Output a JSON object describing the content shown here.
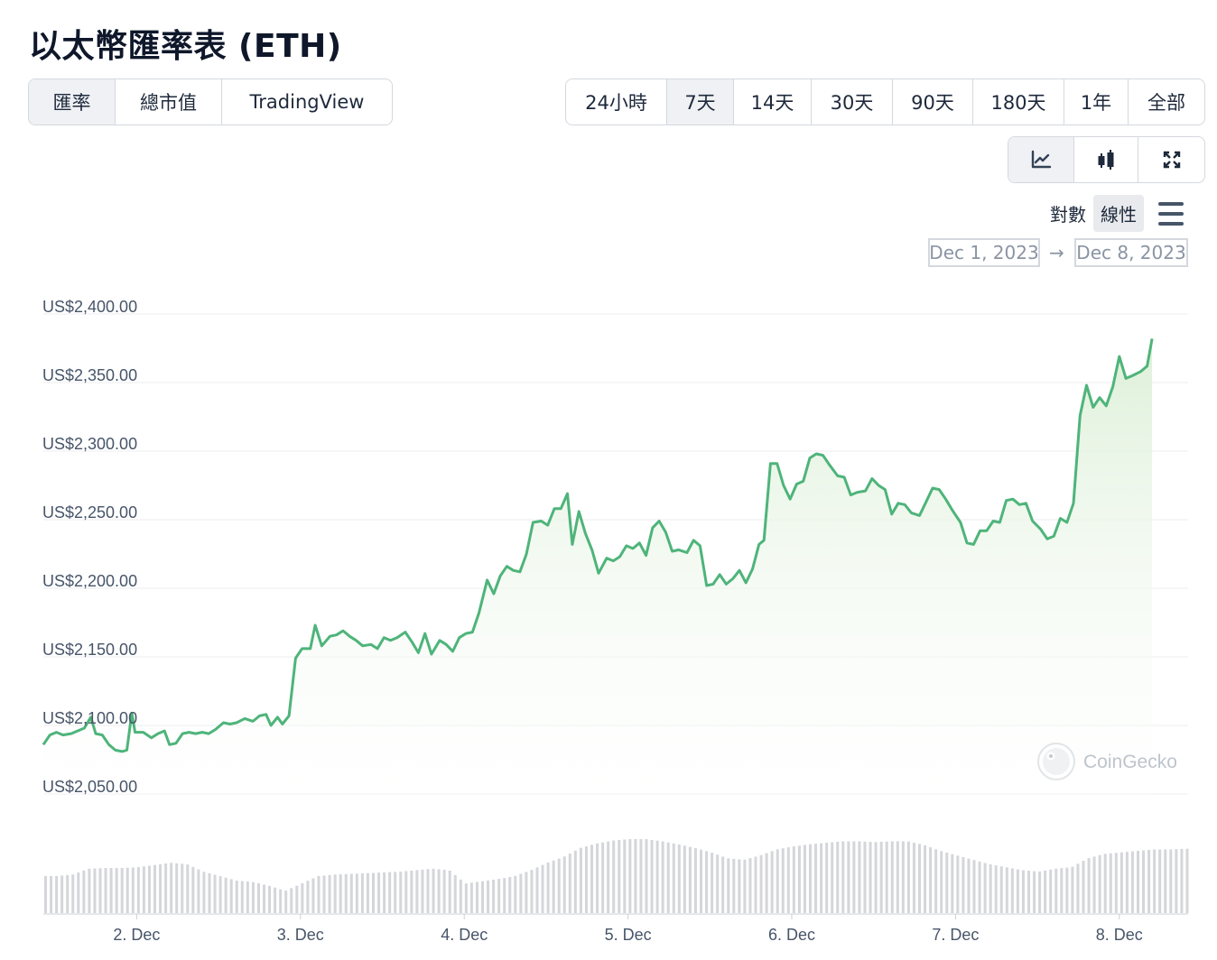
{
  "page": {
    "title": "以太幣匯率表 (ETH)"
  },
  "view_tabs": [
    {
      "label": "匯率",
      "active": true
    },
    {
      "label": "總市值",
      "active": false
    },
    {
      "label": "TradingView",
      "active": false
    }
  ],
  "range_tabs": [
    {
      "label": "24小時",
      "active": false
    },
    {
      "label": "7天",
      "active": true
    },
    {
      "label": "14天",
      "active": false
    },
    {
      "label": "30天",
      "active": false
    },
    {
      "label": "90天",
      "active": false
    },
    {
      "label": "180天",
      "active": false
    },
    {
      "label": "1年",
      "active": false
    },
    {
      "label": "全部",
      "active": false
    }
  ],
  "chart_type_tabs": [
    {
      "icon": "line-chart-icon",
      "active": true
    },
    {
      "icon": "candlestick-icon",
      "active": false
    },
    {
      "icon": "fullscreen-icon",
      "active": false
    }
  ],
  "scale_options": [
    {
      "label": "對數",
      "active": false
    },
    {
      "label": "線性",
      "active": true
    }
  ],
  "date_range": {
    "from": "Dec 1, 2023",
    "arrow": "→",
    "to": "Dec 8, 2023"
  },
  "watermark": "CoinGecko",
  "colors": {
    "line": "#4eb47a",
    "area_top": "#dcefd7",
    "volume": "#d4d6da",
    "grid": "#eceef1"
  },
  "chart_data": {
    "type": "area",
    "title": "",
    "xlabel": "",
    "ylabel": "",
    "ylim": [
      2050,
      2400
    ],
    "yticks": [
      2400,
      2350,
      2300,
      2250,
      2200,
      2150,
      2100,
      2050
    ],
    "ytick_labels": [
      "US$2,400.00",
      "US$2,350.00",
      "US$2,300.00",
      "US$2,250.00",
      "US$2,200.00",
      "US$2,150.00",
      "US$2,100.00",
      "US$2,050.00"
    ],
    "xlim": [
      1.43,
      8.42
    ],
    "xticks": [
      2,
      3,
      4,
      5,
      6,
      7,
      8
    ],
    "xtick_labels": [
      "2. Dec",
      "3. Dec",
      "4. Dec",
      "5. Dec",
      "6. Dec",
      "7. Dec",
      "8. Dec"
    ],
    "grid": true,
    "series": [
      {
        "values": [
          [
            1.43,
            2086
          ],
          [
            1.47,
            2093
          ],
          [
            1.51,
            2095
          ],
          [
            1.55,
            2093
          ],
          [
            1.6,
            2094
          ],
          [
            1.68,
            2098
          ],
          [
            1.72,
            2106
          ],
          [
            1.75,
            2094
          ],
          [
            1.79,
            2093
          ],
          [
            1.83,
            2086
          ],
          [
            1.87,
            2082
          ],
          [
            1.91,
            2081
          ],
          [
            1.94,
            2082
          ],
          [
            1.97,
            2109
          ],
          [
            1.99,
            2095
          ],
          [
            2.04,
            2095
          ],
          [
            2.09,
            2091
          ],
          [
            2.13,
            2094
          ],
          [
            2.17,
            2096
          ],
          [
            2.2,
            2086
          ],
          [
            2.24,
            2087
          ],
          [
            2.28,
            2094
          ],
          [
            2.32,
            2095
          ],
          [
            2.36,
            2094
          ],
          [
            2.4,
            2095
          ],
          [
            2.44,
            2094
          ],
          [
            2.48,
            2097
          ],
          [
            2.53,
            2102
          ],
          [
            2.57,
            2101
          ],
          [
            2.61,
            2102
          ],
          [
            2.66,
            2105
          ],
          [
            2.71,
            2103
          ],
          [
            2.75,
            2107
          ],
          [
            2.79,
            2108
          ],
          [
            2.82,
            2100
          ],
          [
            2.86,
            2106
          ],
          [
            2.89,
            2101
          ],
          [
            2.93,
            2107
          ],
          [
            2.97,
            2149
          ],
          [
            3.01,
            2156
          ],
          [
            3.06,
            2156
          ],
          [
            3.09,
            2173
          ],
          [
            3.13,
            2158
          ],
          [
            3.18,
            2165
          ],
          [
            3.22,
            2166
          ],
          [
            3.26,
            2169
          ],
          [
            3.3,
            2165
          ],
          [
            3.34,
            2162
          ],
          [
            3.38,
            2158
          ],
          [
            3.43,
            2159
          ],
          [
            3.47,
            2156
          ],
          [
            3.51,
            2164
          ],
          [
            3.55,
            2162
          ],
          [
            3.59,
            2164
          ],
          [
            3.64,
            2168
          ],
          [
            3.68,
            2161
          ],
          [
            3.72,
            2153
          ],
          [
            3.76,
            2167
          ],
          [
            3.8,
            2152
          ],
          [
            3.85,
            2162
          ],
          [
            3.89,
            2159
          ],
          [
            3.93,
            2154
          ],
          [
            3.97,
            2164
          ],
          [
            4.01,
            2167
          ],
          [
            4.05,
            2168
          ],
          [
            4.09,
            2182
          ],
          [
            4.14,
            2206
          ],
          [
            4.18,
            2196
          ],
          [
            4.22,
            2209
          ],
          [
            4.26,
            2216
          ],
          [
            4.3,
            2213
          ],
          [
            4.34,
            2212
          ],
          [
            4.38,
            2225
          ],
          [
            4.42,
            2248
          ],
          [
            4.47,
            2249
          ],
          [
            4.51,
            2246
          ],
          [
            4.55,
            2258
          ],
          [
            4.59,
            2258
          ],
          [
            4.63,
            2269
          ],
          [
            4.66,
            2232
          ],
          [
            4.7,
            2256
          ],
          [
            4.74,
            2240
          ],
          [
            4.78,
            2228
          ],
          [
            4.82,
            2211
          ],
          [
            4.87,
            2222
          ],
          [
            4.91,
            2220
          ],
          [
            4.95,
            2223
          ],
          [
            4.99,
            2231
          ],
          [
            5.03,
            2229
          ],
          [
            5.07,
            2233
          ],
          [
            5.11,
            2224
          ],
          [
            5.15,
            2244
          ],
          [
            5.19,
            2249
          ],
          [
            5.23,
            2241
          ],
          [
            5.27,
            2227
          ],
          [
            5.31,
            2228
          ],
          [
            5.36,
            2226
          ],
          [
            5.4,
            2235
          ],
          [
            5.44,
            2231
          ],
          [
            5.48,
            2202
          ],
          [
            5.52,
            2203
          ],
          [
            5.56,
            2210
          ],
          [
            5.6,
            2203
          ],
          [
            5.64,
            2207
          ],
          [
            5.68,
            2213
          ],
          [
            5.72,
            2204
          ],
          [
            5.76,
            2214
          ],
          [
            5.8,
            2232
          ],
          [
            5.83,
            2235
          ],
          [
            5.87,
            2291
          ],
          [
            5.91,
            2291
          ],
          [
            5.95,
            2275
          ],
          [
            5.99,
            2265
          ],
          [
            6.03,
            2276
          ],
          [
            6.07,
            2278
          ],
          [
            6.11,
            2295
          ],
          [
            6.15,
            2298
          ],
          [
            6.19,
            2297
          ],
          [
            6.23,
            2290
          ],
          [
            6.28,
            2282
          ],
          [
            6.32,
            2281
          ],
          [
            6.36,
            2268
          ],
          [
            6.4,
            2270
          ],
          [
            6.45,
            2271
          ],
          [
            6.49,
            2280
          ],
          [
            6.53,
            2275
          ],
          [
            6.57,
            2272
          ],
          [
            6.61,
            2254
          ],
          [
            6.65,
            2262
          ],
          [
            6.69,
            2261
          ],
          [
            6.73,
            2255
          ],
          [
            6.78,
            2253
          ],
          [
            6.82,
            2263
          ],
          [
            6.86,
            2273
          ],
          [
            6.9,
            2272
          ],
          [
            6.94,
            2265
          ],
          [
            6.98,
            2257
          ],
          [
            7.03,
            2248
          ],
          [
            7.07,
            2233
          ],
          [
            7.11,
            2232
          ],
          [
            7.15,
            2242
          ],
          [
            7.19,
            2242
          ],
          [
            7.23,
            2249
          ],
          [
            7.27,
            2248
          ],
          [
            7.31,
            2264
          ],
          [
            7.35,
            2265
          ],
          [
            7.39,
            2261
          ],
          [
            7.43,
            2262
          ],
          [
            7.47,
            2249
          ],
          [
            7.52,
            2243
          ],
          [
            7.56,
            2236
          ],
          [
            7.6,
            2238
          ],
          [
            7.64,
            2251
          ],
          [
            7.68,
            2248
          ],
          [
            7.72,
            2262
          ],
          [
            7.76,
            2326
          ],
          [
            7.8,
            2348
          ],
          [
            7.84,
            2332
          ],
          [
            7.88,
            2339
          ],
          [
            7.92,
            2333
          ],
          [
            7.96,
            2347
          ],
          [
            8.0,
            2369
          ],
          [
            8.04,
            2353
          ],
          [
            8.08,
            2355
          ],
          [
            8.13,
            2358
          ],
          [
            8.17,
            2362
          ],
          [
            8.2,
            2382
          ]
        ]
      }
    ],
    "volume": [
      {
        "x": 1.43,
        "v": 0.5
      },
      {
        "x": 1.5,
        "v": 0.5
      },
      {
        "x": 1.6,
        "v": 0.52
      },
      {
        "x": 1.7,
        "v": 0.6
      },
      {
        "x": 1.8,
        "v": 0.61
      },
      {
        "x": 1.9,
        "v": 0.61
      },
      {
        "x": 2.0,
        "v": 0.62
      },
      {
        "x": 2.1,
        "v": 0.65
      },
      {
        "x": 2.2,
        "v": 0.68
      },
      {
        "x": 2.3,
        "v": 0.66
      },
      {
        "x": 2.4,
        "v": 0.56
      },
      {
        "x": 2.5,
        "v": 0.5
      },
      {
        "x": 2.6,
        "v": 0.44
      },
      {
        "x": 2.7,
        "v": 0.42
      },
      {
        "x": 2.8,
        "v": 0.37
      },
      {
        "x": 2.9,
        "v": 0.3
      },
      {
        "x": 3.0,
        "v": 0.4
      },
      {
        "x": 3.1,
        "v": 0.5
      },
      {
        "x": 3.2,
        "v": 0.52
      },
      {
        "x": 3.3,
        "v": 0.53
      },
      {
        "x": 3.4,
        "v": 0.54
      },
      {
        "x": 3.5,
        "v": 0.55
      },
      {
        "x": 3.6,
        "v": 0.56
      },
      {
        "x": 3.7,
        "v": 0.58
      },
      {
        "x": 3.8,
        "v": 0.6
      },
      {
        "x": 3.9,
        "v": 0.58
      },
      {
        "x": 4.0,
        "v": 0.4
      },
      {
        "x": 4.1,
        "v": 0.43
      },
      {
        "x": 4.2,
        "v": 0.46
      },
      {
        "x": 4.3,
        "v": 0.5
      },
      {
        "x": 4.4,
        "v": 0.58
      },
      {
        "x": 4.5,
        "v": 0.68
      },
      {
        "x": 4.6,
        "v": 0.76
      },
      {
        "x": 4.7,
        "v": 0.88
      },
      {
        "x": 4.8,
        "v": 0.94
      },
      {
        "x": 4.9,
        "v": 0.98
      },
      {
        "x": 5.0,
        "v": 1.0
      },
      {
        "x": 5.1,
        "v": 1.0
      },
      {
        "x": 5.2,
        "v": 0.97
      },
      {
        "x": 5.3,
        "v": 0.93
      },
      {
        "x": 5.4,
        "v": 0.88
      },
      {
        "x": 5.5,
        "v": 0.82
      },
      {
        "x": 5.6,
        "v": 0.74
      },
      {
        "x": 5.7,
        "v": 0.72
      },
      {
        "x": 5.8,
        "v": 0.78
      },
      {
        "x": 5.9,
        "v": 0.86
      },
      {
        "x": 6.0,
        "v": 0.9
      },
      {
        "x": 6.1,
        "v": 0.93
      },
      {
        "x": 6.2,
        "v": 0.95
      },
      {
        "x": 6.3,
        "v": 0.97
      },
      {
        "x": 6.4,
        "v": 0.97
      },
      {
        "x": 6.5,
        "v": 0.96
      },
      {
        "x": 6.6,
        "v": 0.97
      },
      {
        "x": 6.7,
        "v": 0.97
      },
      {
        "x": 6.8,
        "v": 0.92
      },
      {
        "x": 6.9,
        "v": 0.84
      },
      {
        "x": 7.0,
        "v": 0.78
      },
      {
        "x": 7.1,
        "v": 0.72
      },
      {
        "x": 7.2,
        "v": 0.66
      },
      {
        "x": 7.3,
        "v": 0.62
      },
      {
        "x": 7.4,
        "v": 0.58
      },
      {
        "x": 7.5,
        "v": 0.56
      },
      {
        "x": 7.6,
        "v": 0.6
      },
      {
        "x": 7.7,
        "v": 0.62
      },
      {
        "x": 7.8,
        "v": 0.74
      },
      {
        "x": 7.9,
        "v": 0.8
      },
      {
        "x": 8.0,
        "v": 0.82
      },
      {
        "x": 8.1,
        "v": 0.84
      },
      {
        "x": 8.2,
        "v": 0.86
      },
      {
        "x": 8.3,
        "v": 0.86
      },
      {
        "x": 8.4,
        "v": 0.87
      }
    ]
  }
}
